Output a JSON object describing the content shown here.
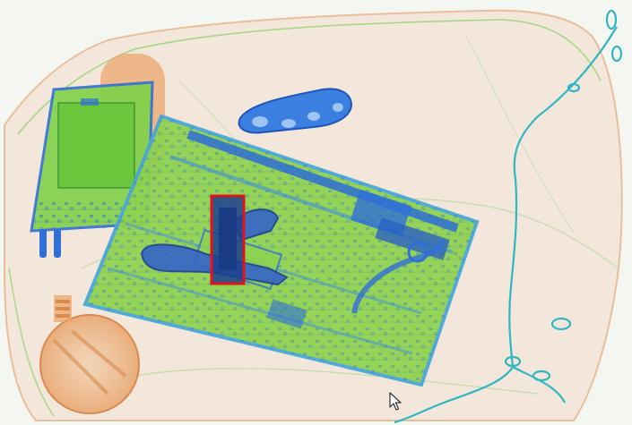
{
  "viewer": {
    "background": "#f4f6f2",
    "palette": {
      "organic": "#e8a36a",
      "mixed": "#7ed23a",
      "inorganic": "#2f6fd6",
      "dense": "#1c3f8f",
      "metal_cyan": "#2fb7c4"
    },
    "detection": {
      "label": "",
      "color": "#e3131b"
    },
    "cursor": {
      "icon": "mouse-pointer-icon"
    }
  }
}
